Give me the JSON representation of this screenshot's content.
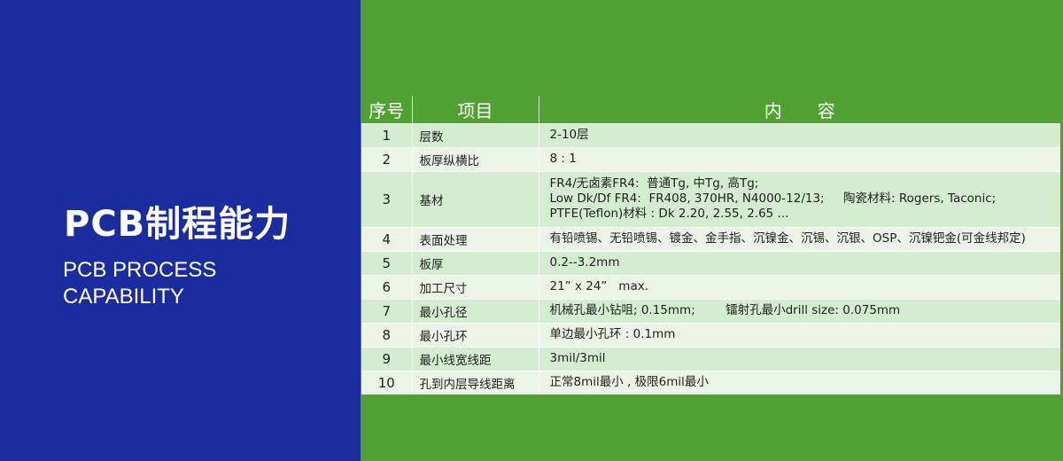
{
  "left_panel": {
    "title_cn": "PCB制程能力",
    "title_en_line1": "PCB PROCESS",
    "title_en_line2": "CAPABILITY",
    "bg_color": "#1a2c9e"
  },
  "table": {
    "headers": [
      "序号",
      "项目",
      "内　　容"
    ],
    "header_bg": "#50a034",
    "rows": [
      {
        "no": "1",
        "item": "层数",
        "content": [
          "2-10层"
        ]
      },
      {
        "no": "2",
        "item": "板厚纵横比",
        "content": [
          "8 : 1"
        ]
      },
      {
        "no": "3",
        "item": "基材",
        "content": [
          "FR4/无卤素FR4:  普通Tg, 中Tg, 高Tg;",
          "Low Dk/Df FR4:  FR408, 370HR, N4000-12/13;     陶瓷材料: Rogers, Taconic;",
          "PTFE(Teflon)材料 : Dk 2.20, 2.55, 2.65 ..."
        ]
      },
      {
        "no": "4",
        "item": "表面处理",
        "content": [
          "有铅喷锡、无铅喷锡、镀金、金手指、沉镍金、沉锡、沉银、OSP、沉镍钯金(可金线邦定)"
        ]
      },
      {
        "no": "5",
        "item": "板厚",
        "content": [
          "0.2--3.2mm"
        ]
      },
      {
        "no": "6",
        "item": "加工尺寸",
        "content": [
          "21” x 24”   max."
        ]
      },
      {
        "no": "7",
        "item": "最小孔径",
        "content": [
          "机械孔最小钻咀; 0.15mm;        镭射孔最小drill size: 0.075mm"
        ]
      },
      {
        "no": "8",
        "item": "最小孔环",
        "content": [
          "单边最小孔环 : 0.1mm"
        ]
      },
      {
        "no": "9",
        "item": "最小线宽线距",
        "content": [
          "3mil/3mil"
        ]
      },
      {
        "no": "10",
        "item": "孔到内层导线距离",
        "content": [
          "正常8mil最小 , 极限6mil最小"
        ]
      }
    ]
  }
}
